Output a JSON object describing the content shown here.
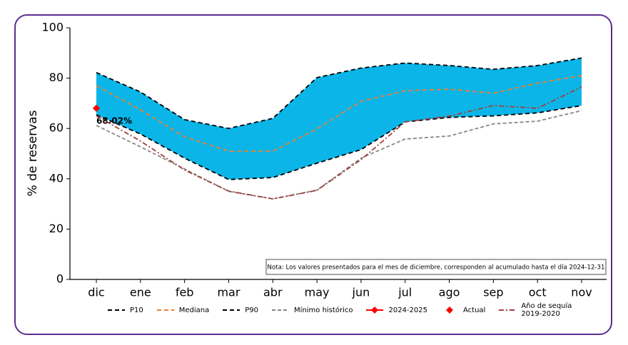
{
  "chart_data": {
    "type": "line",
    "ylabel": "% de reservas",
    "categories": [
      "dic",
      "ene",
      "feb",
      "mar",
      "abr",
      "may",
      "jun",
      "jul",
      "ago",
      "sep",
      "oct",
      "nov"
    ],
    "ylim": [
      0,
      100
    ],
    "yticks": [
      0,
      20,
      40,
      60,
      80,
      100
    ],
    "fill_between": {
      "lower": 0,
      "upper": 2,
      "color": "#0bb5e8"
    },
    "series": [
      {
        "name": "P10",
        "color": "#000000",
        "dash": "6,4",
        "values": [
          65.4,
          57.8,
          48.2,
          39.7,
          40.5,
          46.2,
          51.6,
          62.6,
          64.4,
          65,
          66.2,
          69.1
        ]
      },
      {
        "name": "Mediana",
        "color": "#f07f2e",
        "dash": "6,4",
        "values": [
          77,
          67.4,
          56.7,
          51,
          51,
          59.8,
          70.8,
          75,
          75.6,
          74,
          78,
          81
        ]
      },
      {
        "name": "P90",
        "color": "#000000",
        "dash": "6,4",
        "values": [
          82.2,
          74.5,
          63.5,
          60,
          64,
          80.2,
          84,
          86,
          85,
          83.5,
          85,
          88
        ]
      },
      {
        "name": "Mínimo histórico",
        "color": "#888888",
        "dash": "5,3",
        "values": [
          61.2,
          52.7,
          43.9,
          35,
          32,
          35.5,
          48.2,
          55.8,
          57,
          61.8,
          62.9,
          67.1
        ]
      },
      {
        "name": "2024-2025",
        "color": "#ff0000",
        "dash": "",
        "marker": "diamond",
        "values": [
          68.02,
          null,
          null,
          null,
          null,
          null,
          null,
          null,
          null,
          null,
          null,
          null
        ]
      },
      {
        "name": "Actual",
        "color": "#ff0000",
        "marker": "diamond",
        "line": false,
        "values": [
          68.02,
          null,
          null,
          null,
          null,
          null,
          null,
          null,
          null,
          null,
          null,
          null
        ],
        "value_labels": [
          "68.02%",
          null,
          null,
          null,
          null,
          null,
          null,
          null,
          null,
          null,
          null,
          null
        ]
      },
      {
        "name": "Año de sequía\n2019-2020",
        "color": "#a0403c",
        "dash": "7,3,2,3",
        "values": [
          65,
          55,
          43.5,
          35.1,
          32,
          35.4,
          47.6,
          62.6,
          64.9,
          69.1,
          68,
          76.5
        ]
      }
    ],
    "note": "Nota: Los valores presentados para el mes de diciembre, corresponden al acumulado hasta el día 2024-12-31"
  }
}
